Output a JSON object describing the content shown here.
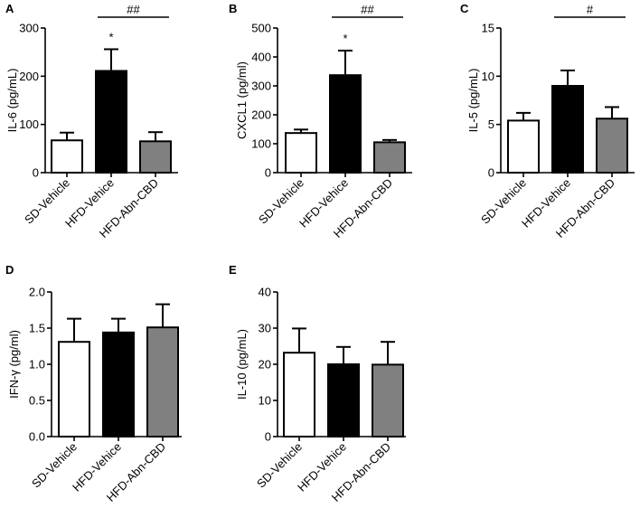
{
  "chart_data": [
    {
      "panel": "A",
      "type": "bar",
      "categories": [
        "SD-Vehicle",
        "HFD-Vehice",
        "HFD-Abn-CBD"
      ],
      "values": [
        67,
        211,
        65
      ],
      "errors": [
        16,
        45,
        19
      ],
      "fills": [
        "#ffffff",
        "#000000",
        "#808080"
      ],
      "ylabel": "IL-6 (pg/mL)",
      "ylim": [
        0,
        300
      ],
      "yticks": [
        0,
        100,
        200,
        300
      ],
      "ytick_labels": [
        "0",
        "100",
        "200",
        "300"
      ],
      "stars": [
        {
          "index": 1,
          "text": "*"
        }
      ],
      "bracket": {
        "from": 1,
        "to": 2,
        "text": "##"
      }
    },
    {
      "panel": "B",
      "type": "bar",
      "categories": [
        "SD-Vehicle",
        "HFD-Vehice",
        "HFD-Abn-CBD"
      ],
      "values": [
        137,
        337,
        105
      ],
      "errors": [
        12,
        85,
        8
      ],
      "fills": [
        "#ffffff",
        "#000000",
        "#808080"
      ],
      "ylabel": "CXCL1 (pg/ml)",
      "ylim": [
        0,
        500
      ],
      "yticks": [
        0,
        100,
        200,
        300,
        400,
        500
      ],
      "ytick_labels": [
        "0",
        "100",
        "200",
        "300",
        "400",
        "500"
      ],
      "stars": [
        {
          "index": 1,
          "text": "*"
        }
      ],
      "bracket": {
        "from": 1,
        "to": 2,
        "text": "##"
      }
    },
    {
      "panel": "C",
      "type": "bar",
      "categories": [
        "SD-Vehicle",
        "HFD-Vehice",
        "HFD-Abn-CBD"
      ],
      "values": [
        5.4,
        9.0,
        5.6
      ],
      "errors": [
        0.8,
        1.6,
        1.2
      ],
      "fills": [
        "#ffffff",
        "#000000",
        "#808080"
      ],
      "ylabel": "IL-5 (pg/mL)",
      "ylim": [
        0,
        15
      ],
      "yticks": [
        0,
        5,
        10,
        15
      ],
      "ytick_labels": [
        "0",
        "5",
        "10",
        "15"
      ],
      "stars": [],
      "bracket": {
        "from": 1,
        "to": 2,
        "text": "#"
      }
    },
    {
      "panel": "D",
      "type": "bar",
      "categories": [
        "SD-Vehicle",
        "HFD-Vehice",
        "HFD-Abn-CBD"
      ],
      "values": [
        1.31,
        1.44,
        1.51
      ],
      "errors": [
        0.32,
        0.19,
        0.32
      ],
      "fills": [
        "#ffffff",
        "#000000",
        "#808080"
      ],
      "ylabel": "IFN-γ (pg/ml)",
      "ylim": [
        0,
        2.0
      ],
      "yticks": [
        0,
        0.5,
        1.0,
        1.5,
        2.0
      ],
      "ytick_labels": [
        "0.0",
        "0.5",
        "1.0",
        "1.5",
        "2.0"
      ],
      "stars": [],
      "bracket": null
    },
    {
      "panel": "E",
      "type": "bar",
      "categories": [
        "SD-Vehicle",
        "HFD-Vehice",
        "HFD-Abn-CBD"
      ],
      "values": [
        23.2,
        20.0,
        19.9
      ],
      "errors": [
        6.7,
        4.8,
        6.3
      ],
      "fills": [
        "#ffffff",
        "#000000",
        "#808080"
      ],
      "ylabel": "IL-10 (pg/mL)",
      "ylim": [
        0,
        40
      ],
      "yticks": [
        0,
        10,
        20,
        30,
        40
      ],
      "ytick_labels": [
        "0",
        "10",
        "20",
        "30",
        "40"
      ],
      "stars": [],
      "bracket": null
    }
  ]
}
